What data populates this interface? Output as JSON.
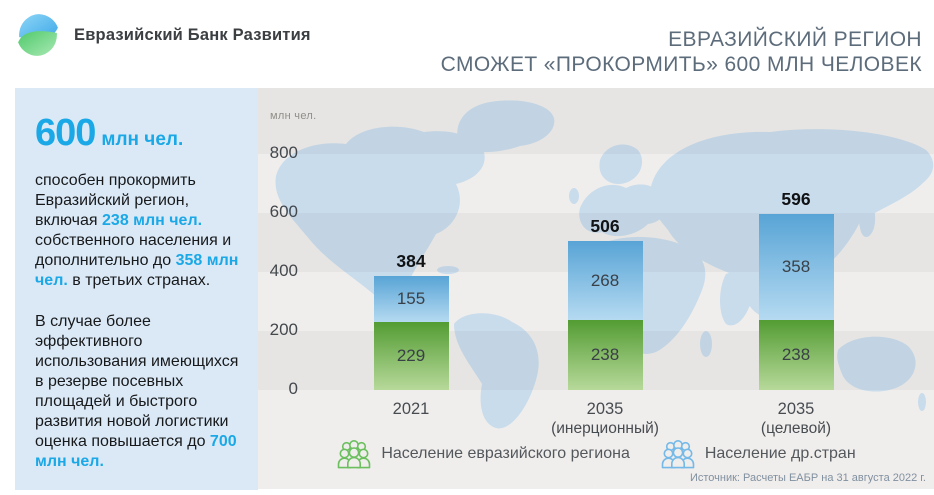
{
  "colors": {
    "accent_blue": "#1ba8e6",
    "panel_bg": "#dbe9f7",
    "title_gray": "#5d6c7b",
    "chart_bg": "#f0eeec",
    "map_land": "#c9dcec"
  },
  "brand": {
    "name": "Евразийский Банк Развития"
  },
  "title": {
    "line1": "ЕВРАЗИЙСКИЙ РЕГИОН",
    "line2": "СМОЖЕТ «ПРОКОРМИТЬ» 600  МЛН ЧЕЛОВЕК"
  },
  "panel": {
    "headline_number": "600",
    "headline_unit": "млн чел.",
    "para1": [
      {
        "t": "способен прокормить Евразийский регион, включая "
      },
      {
        "t": "238 млн чел.",
        "h": true
      },
      {
        "t": " собственного населения и дополнительно до "
      },
      {
        "t": "358 млн чел.",
        "h": true
      },
      {
        "t": " в третьих странах."
      }
    ],
    "para2": [
      {
        "t": "В случае более эффективного использования имеющихся в резерве посевных площадей и быстрого развития новой логистики оценка повышается до "
      },
      {
        "t": "700 млн чел.",
        "h": true
      }
    ]
  },
  "chart_data": {
    "type": "bar",
    "stacked": true,
    "unit_label": "млн чел.",
    "y_ticks": [
      0,
      200,
      400,
      600,
      800
    ],
    "ylim": [
      0,
      800
    ],
    "grid": "banded",
    "legend_position": "bottom",
    "categories": [
      [
        "2021"
      ],
      [
        "2035",
        "(инерционный)"
      ],
      [
        "2035",
        "(целевой)"
      ]
    ],
    "series": [
      {
        "name": "Население евразийского региона",
        "values": [
          229,
          238,
          238
        ],
        "bar_top_color": "#539c33",
        "bar_bottom_color": "#b7d99a",
        "legend_color": "#6cbf5f"
      },
      {
        "name": "Население др.стран",
        "values": [
          155,
          268,
          358
        ],
        "bar_top_color": "#58a4d6",
        "bar_bottom_color": "#b5daf1",
        "legend_color": "#74b9e8"
      }
    ],
    "totals": [
      384,
      506,
      596
    ]
  },
  "source": "Источник: Расчеты ЕАБР на 31 августа 2022 г."
}
